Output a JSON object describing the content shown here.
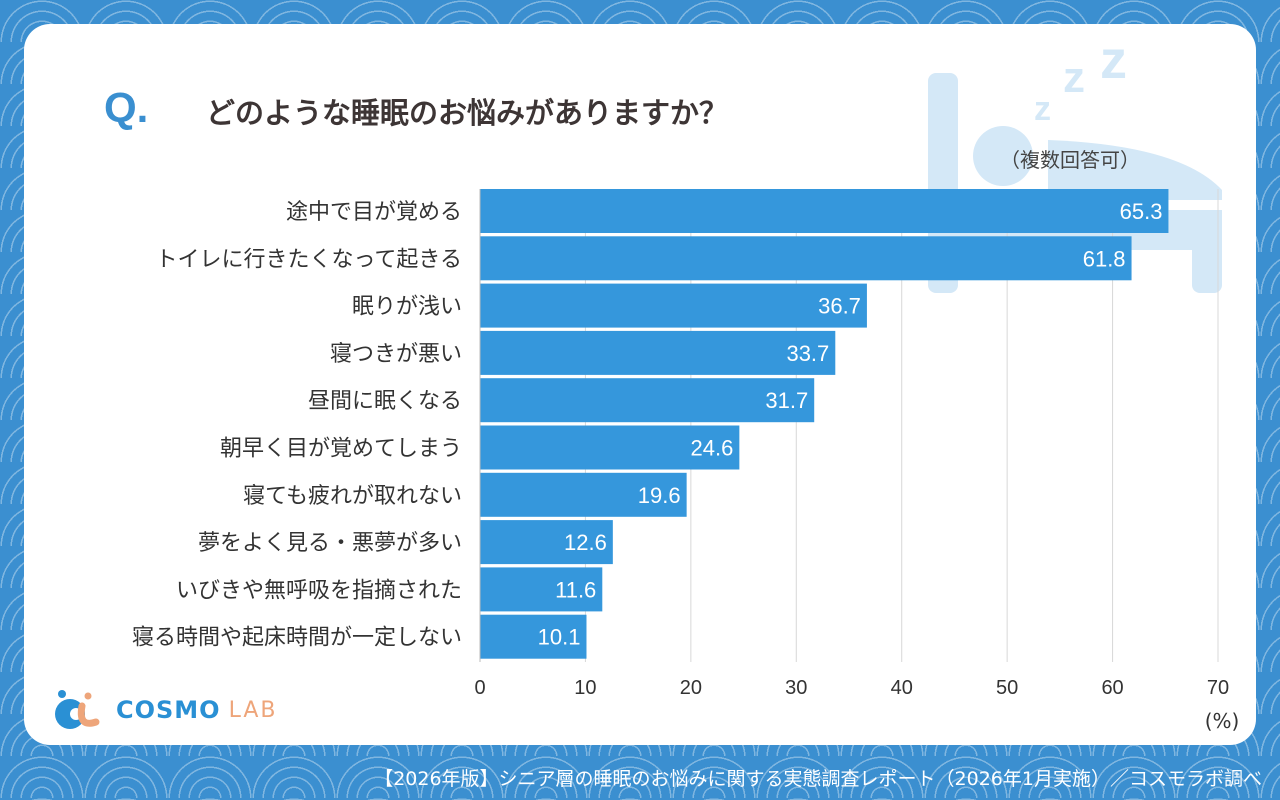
{
  "question_mark": "Q.",
  "title": "どのような睡眠のお悩みがありますか？",
  "note": "（複数回答可）",
  "footer": "【2026年版】シニア層の睡眠のお悩みに関する実態調査レポート（2026年1月実施）／コスモラボ調べ",
  "logo": {
    "main": "COSMO",
    "sub": "LAB"
  },
  "colors": {
    "bar": "#3597dc",
    "background": "#3b8fd0",
    "illustration": "#d4e8f7"
  },
  "chart_data": {
    "type": "bar",
    "orientation": "horizontal",
    "categories": [
      "途中で目が覚める",
      "トイレに行きたくなって起きる",
      "眠りが浅い",
      "寝つきが悪い",
      "昼間に眠くなる",
      "朝早く目が覚めてしまう",
      "寝ても疲れが取れない",
      "夢をよく見る・悪夢が多い",
      "いびきや無呼吸を指摘された",
      "寝る時間や起床時間が一定しない"
    ],
    "values": [
      65.3,
      61.8,
      36.7,
      33.7,
      31.7,
      24.6,
      19.6,
      12.6,
      11.6,
      10.1
    ],
    "xlim": [
      0,
      70
    ],
    "ticks": [
      "0",
      "10",
      "20",
      "30",
      "40",
      "50",
      "60",
      "70"
    ],
    "unit": "(%)",
    "grid": true
  }
}
